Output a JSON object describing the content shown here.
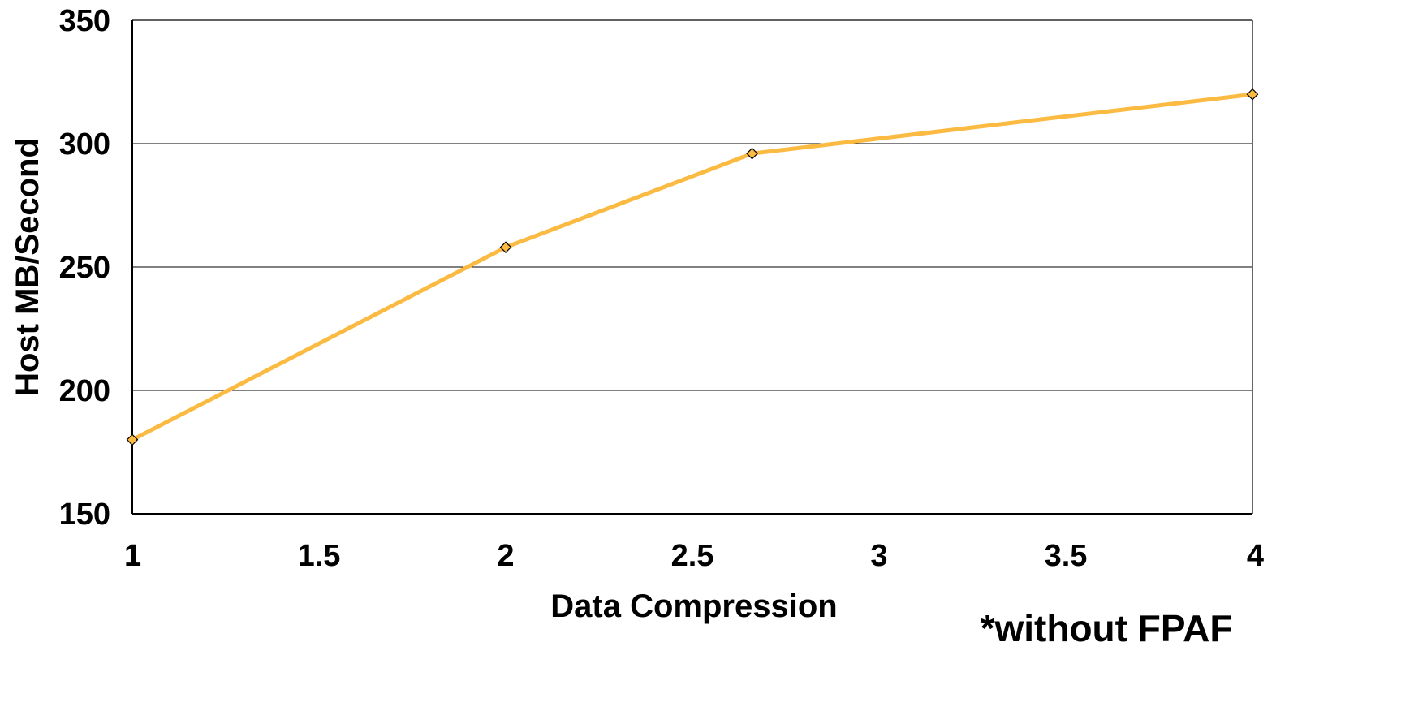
{
  "chart_data": {
    "type": "line",
    "title": "",
    "xlabel": "Data Compression",
    "ylabel": "Host MB/Second",
    "xlim": [
      1,
      4
    ],
    "ylim": [
      150,
      350
    ],
    "x_ticks": [
      "1",
      "1.5",
      "2",
      "2.5",
      "3",
      "3.5",
      "4"
    ],
    "y_ticks": [
      "150",
      "200",
      "250",
      "300",
      "350"
    ],
    "grid": "horizontal",
    "legend": "none",
    "series": [
      {
        "color": "#FBBA42",
        "marker": "diamond",
        "points": [
          {
            "x": 1,
            "y": 180
          },
          {
            "x": 2,
            "y": 258
          },
          {
            "x": 2.66,
            "y": 296
          },
          {
            "x": 4,
            "y": 320
          }
        ]
      }
    ],
    "annotation": "*without FPAF"
  }
}
